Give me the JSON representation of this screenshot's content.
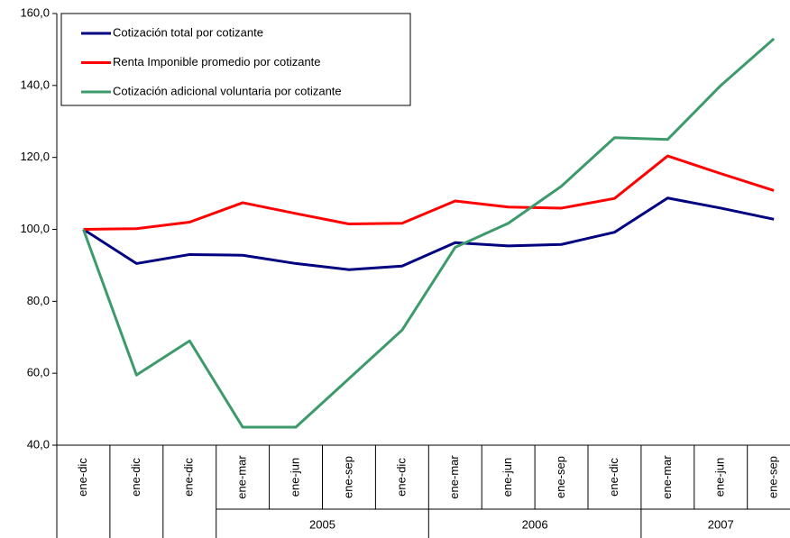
{
  "chart_data": {
    "type": "line",
    "categories": [
      "ene-dic",
      "ene-dic",
      "ene-dic",
      "ene-mar",
      "ene-jun",
      "ene-sep",
      "ene-dic",
      "ene-mar",
      "ene-jun",
      "ene-sep",
      "ene-dic",
      "ene-mar",
      "ene-jun",
      "ene-sep"
    ],
    "groups": [
      {
        "label": "2005",
        "span": [
          3,
          6
        ]
      },
      {
        "label": "2006",
        "span": [
          7,
          10
        ]
      },
      {
        "label": "2007",
        "span": [
          11,
          13
        ]
      }
    ],
    "series": [
      {
        "name": "Cotización total por cotizante",
        "color": "#000080",
        "values": [
          100,
          90.5,
          93,
          92.8,
          90.5,
          88.8,
          89.8,
          96.3,
          95.4,
          95.8,
          99.2,
          108.7,
          105.9,
          102.8
        ]
      },
      {
        "name": "Renta Imponible promedio por cotizante",
        "color": "#ff0000",
        "values": [
          100,
          100.2,
          102,
          107.4,
          104.4,
          101.5,
          101.7,
          107.9,
          106.2,
          105.9,
          108.6,
          120.4,
          115.5,
          110.8
        ]
      },
      {
        "name": "Cotización adicional voluntaria por cotizante",
        "color": "#3d9a6a",
        "values": [
          100,
          59.5,
          69,
          45,
          45,
          58.5,
          72,
          95,
          101.7,
          112,
          125.5,
          125,
          140,
          153
        ]
      }
    ],
    "ylim": [
      40,
      160
    ],
    "yticks": [
      {
        "value": 40,
        "label": "40,0"
      },
      {
        "value": 60,
        "label": "60,0"
      },
      {
        "value": 80,
        "label": "80,0"
      },
      {
        "value": 100,
        "label": "100,0"
      },
      {
        "value": 120,
        "label": "120,0"
      },
      {
        "value": 140,
        "label": "140,0"
      },
      {
        "value": 160,
        "label": "160,0"
      }
    ],
    "legend": "top-left"
  }
}
